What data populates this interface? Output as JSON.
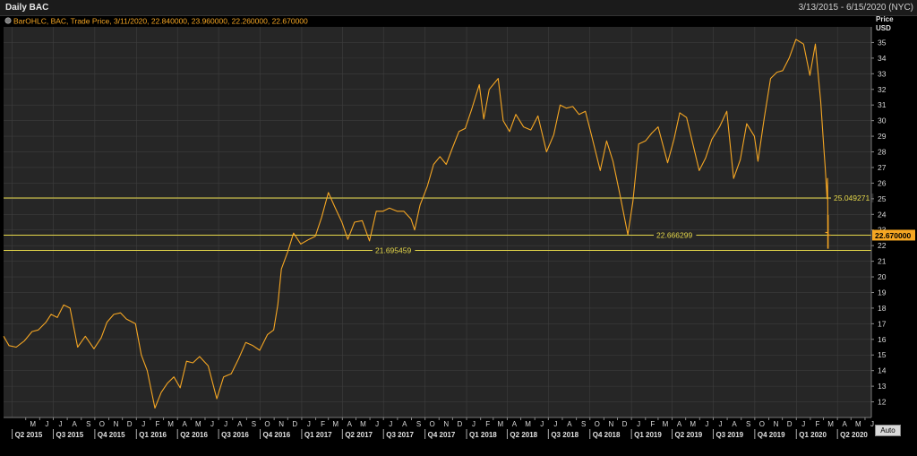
{
  "header": {
    "title": "Daily BAC",
    "date_range": "3/13/2015 - 6/15/2020 (NYC)"
  },
  "legend": {
    "label": "BarOHLC, BAC, Trade Price, 3/11/2020, 22.840000, 23.960000, 22.260000, 22.670000"
  },
  "axis": {
    "title_line1": "Price",
    "title_line2": "USD",
    "auto_label": "Auto"
  },
  "colors": {
    "background": "#000000",
    "plot_background": "#262626",
    "grid": "#3e3e3e",
    "series": "#f5a623",
    "level_line": "#e6d84a",
    "last_price_tag": "#f5a623"
  },
  "chart_data": {
    "type": "line",
    "title": "Daily BAC",
    "ylabel": "Price USD",
    "ylim": [
      11,
      36
    ],
    "y_ticks": [
      12,
      13,
      14,
      15,
      16,
      17,
      18,
      19,
      20,
      21,
      22,
      23,
      24,
      25,
      26,
      27,
      28,
      29,
      30,
      31,
      32,
      33,
      34,
      35
    ],
    "x_range": [
      "2015-03-13",
      "2020-06-15"
    ],
    "month_ticks": [
      {
        "date": "2015-04-01",
        "label": "A"
      },
      {
        "date": "2015-05-01",
        "label": "M"
      },
      {
        "date": "2015-06-01",
        "label": "J"
      },
      {
        "date": "2015-07-01",
        "label": "J"
      },
      {
        "date": "2015-08-01",
        "label": "A"
      },
      {
        "date": "2015-09-01",
        "label": "S"
      },
      {
        "date": "2015-10-01",
        "label": "O"
      },
      {
        "date": "2015-11-01",
        "label": "N"
      },
      {
        "date": "2015-12-01",
        "label": "D"
      },
      {
        "date": "2016-01-01",
        "label": "J"
      },
      {
        "date": "2016-02-01",
        "label": "F"
      },
      {
        "date": "2016-03-01",
        "label": "M"
      },
      {
        "date": "2016-04-01",
        "label": "A"
      },
      {
        "date": "2016-05-01",
        "label": "M"
      },
      {
        "date": "2016-06-01",
        "label": "J"
      },
      {
        "date": "2016-07-01",
        "label": "J"
      },
      {
        "date": "2016-08-01",
        "label": "A"
      },
      {
        "date": "2016-09-01",
        "label": "S"
      },
      {
        "date": "2016-10-01",
        "label": "O"
      },
      {
        "date": "2016-11-01",
        "label": "N"
      },
      {
        "date": "2016-12-01",
        "label": "D"
      },
      {
        "date": "2017-01-01",
        "label": "J"
      },
      {
        "date": "2017-02-01",
        "label": "F"
      },
      {
        "date": "2017-03-01",
        "label": "M"
      },
      {
        "date": "2017-04-01",
        "label": "A"
      },
      {
        "date": "2017-05-01",
        "label": "M"
      },
      {
        "date": "2017-06-01",
        "label": "J"
      },
      {
        "date": "2017-07-01",
        "label": "J"
      },
      {
        "date": "2017-08-01",
        "label": "A"
      },
      {
        "date": "2017-09-01",
        "label": "S"
      },
      {
        "date": "2017-10-01",
        "label": "O"
      },
      {
        "date": "2017-11-01",
        "label": "N"
      },
      {
        "date": "2017-12-01",
        "label": "D"
      },
      {
        "date": "2018-01-01",
        "label": "J"
      },
      {
        "date": "2018-02-01",
        "label": "F"
      },
      {
        "date": "2018-03-01",
        "label": "M"
      },
      {
        "date": "2018-04-01",
        "label": "A"
      },
      {
        "date": "2018-05-01",
        "label": "M"
      },
      {
        "date": "2018-06-01",
        "label": "J"
      },
      {
        "date": "2018-07-01",
        "label": "J"
      },
      {
        "date": "2018-08-01",
        "label": "A"
      },
      {
        "date": "2018-09-01",
        "label": "S"
      },
      {
        "date": "2018-10-01",
        "label": "O"
      },
      {
        "date": "2018-11-01",
        "label": "N"
      },
      {
        "date": "2018-12-01",
        "label": "D"
      },
      {
        "date": "2019-01-01",
        "label": "J"
      },
      {
        "date": "2019-02-01",
        "label": "F"
      },
      {
        "date": "2019-03-01",
        "label": "M"
      },
      {
        "date": "2019-04-01",
        "label": "A"
      },
      {
        "date": "2019-05-01",
        "label": "M"
      },
      {
        "date": "2019-06-01",
        "label": "J"
      },
      {
        "date": "2019-07-01",
        "label": "J"
      },
      {
        "date": "2019-08-01",
        "label": "A"
      },
      {
        "date": "2019-09-01",
        "label": "S"
      },
      {
        "date": "2019-10-01",
        "label": "O"
      },
      {
        "date": "2019-11-01",
        "label": "N"
      },
      {
        "date": "2019-12-01",
        "label": "D"
      },
      {
        "date": "2020-01-01",
        "label": "J"
      },
      {
        "date": "2020-02-01",
        "label": "F"
      },
      {
        "date": "2020-03-01",
        "label": "M"
      },
      {
        "date": "2020-04-01",
        "label": "A"
      },
      {
        "date": "2020-05-01",
        "label": "M"
      },
      {
        "date": "2020-06-01",
        "label": "J"
      }
    ],
    "quarter_ticks": [
      {
        "date": "2015-04-01",
        "label": "Q2 2015"
      },
      {
        "date": "2015-07-01",
        "label": "Q3 2015"
      },
      {
        "date": "2015-10-01",
        "label": "Q4 2015"
      },
      {
        "date": "2016-01-01",
        "label": "Q1 2016"
      },
      {
        "date": "2016-04-01",
        "label": "Q2 2016"
      },
      {
        "date": "2016-07-01",
        "label": "Q3 2016"
      },
      {
        "date": "2016-10-01",
        "label": "Q4 2016"
      },
      {
        "date": "2017-01-01",
        "label": "Q1 2017"
      },
      {
        "date": "2017-04-01",
        "label": "Q2 2017"
      },
      {
        "date": "2017-07-01",
        "label": "Q3 2017"
      },
      {
        "date": "2017-10-01",
        "label": "Q4 2017"
      },
      {
        "date": "2018-01-01",
        "label": "Q1 2018"
      },
      {
        "date": "2018-04-01",
        "label": "Q2 2018"
      },
      {
        "date": "2018-07-01",
        "label": "Q3 2018"
      },
      {
        "date": "2018-10-01",
        "label": "Q4 2018"
      },
      {
        "date": "2019-01-01",
        "label": "Q1 2019"
      },
      {
        "date": "2019-04-01",
        "label": "Q2 2019"
      },
      {
        "date": "2019-07-01",
        "label": "Q3 2019"
      },
      {
        "date": "2019-10-01",
        "label": "Q4 2019"
      },
      {
        "date": "2020-01-01",
        "label": "Q1 2020"
      },
      {
        "date": "2020-04-01",
        "label": "Q2 2020"
      }
    ],
    "series": [
      {
        "values": [
          [
            "2015-03-13",
            16.2
          ],
          [
            "2015-03-25",
            15.6
          ],
          [
            "2015-04-10",
            15.5
          ],
          [
            "2015-04-28",
            15.9
          ],
          [
            "2015-05-15",
            16.5
          ],
          [
            "2015-05-29",
            16.6
          ],
          [
            "2015-06-15",
            17.1
          ],
          [
            "2015-06-26",
            17.6
          ],
          [
            "2015-07-10",
            17.4
          ],
          [
            "2015-07-24",
            18.2
          ],
          [
            "2015-08-07",
            18.0
          ],
          [
            "2015-08-24",
            15.5
          ],
          [
            "2015-09-10",
            16.2
          ],
          [
            "2015-09-29",
            15.4
          ],
          [
            "2015-10-15",
            16.1
          ],
          [
            "2015-10-28",
            17.1
          ],
          [
            "2015-11-12",
            17.6
          ],
          [
            "2015-11-27",
            17.7
          ],
          [
            "2015-12-10",
            17.3
          ],
          [
            "2015-12-30",
            17.0
          ],
          [
            "2016-01-12",
            15.0
          ],
          [
            "2016-01-25",
            14.0
          ],
          [
            "2016-02-11",
            11.6
          ],
          [
            "2016-02-25",
            12.6
          ],
          [
            "2016-03-10",
            13.2
          ],
          [
            "2016-03-24",
            13.6
          ],
          [
            "2016-04-07",
            12.9
          ],
          [
            "2016-04-21",
            14.6
          ],
          [
            "2016-05-05",
            14.5
          ],
          [
            "2016-05-20",
            14.9
          ],
          [
            "2016-06-08",
            14.3
          ],
          [
            "2016-06-27",
            12.2
          ],
          [
            "2016-07-12",
            13.6
          ],
          [
            "2016-07-29",
            13.8
          ],
          [
            "2016-08-15",
            14.8
          ],
          [
            "2016-08-30",
            15.8
          ],
          [
            "2016-09-15",
            15.6
          ],
          [
            "2016-09-30",
            15.3
          ],
          [
            "2016-10-17",
            16.3
          ],
          [
            "2016-10-31",
            16.6
          ],
          [
            "2016-11-09",
            18.2
          ],
          [
            "2016-11-17",
            20.5
          ],
          [
            "2016-12-01",
            21.6
          ],
          [
            "2016-12-14",
            22.8
          ],
          [
            "2016-12-30",
            22.1
          ],
          [
            "2017-01-17",
            22.4
          ],
          [
            "2017-01-31",
            22.6
          ],
          [
            "2017-02-14",
            23.8
          ],
          [
            "2017-03-01",
            25.4
          ],
          [
            "2017-03-15",
            24.5
          ],
          [
            "2017-03-31",
            23.5
          ],
          [
            "2017-04-13",
            22.4
          ],
          [
            "2017-04-28",
            23.5
          ],
          [
            "2017-05-15",
            23.6
          ],
          [
            "2017-05-31",
            22.3
          ],
          [
            "2017-06-15",
            24.2
          ],
          [
            "2017-06-30",
            24.2
          ],
          [
            "2017-07-14",
            24.4
          ],
          [
            "2017-07-31",
            24.2
          ],
          [
            "2017-08-15",
            24.2
          ],
          [
            "2017-08-31",
            23.7
          ],
          [
            "2017-09-08",
            23.0
          ],
          [
            "2017-09-20",
            24.6
          ],
          [
            "2017-10-06",
            25.8
          ],
          [
            "2017-10-20",
            27.2
          ],
          [
            "2017-11-03",
            27.7
          ],
          [
            "2017-11-17",
            27.2
          ],
          [
            "2017-11-30",
            28.2
          ],
          [
            "2017-12-15",
            29.3
          ],
          [
            "2017-12-29",
            29.5
          ],
          [
            "2018-01-12",
            30.7
          ],
          [
            "2018-01-29",
            32.3
          ],
          [
            "2018-02-08",
            30.1
          ],
          [
            "2018-02-20",
            32.0
          ],
          [
            "2018-03-12",
            32.7
          ],
          [
            "2018-03-23",
            30.0
          ],
          [
            "2018-04-06",
            29.3
          ],
          [
            "2018-04-20",
            30.4
          ],
          [
            "2018-05-07",
            29.6
          ],
          [
            "2018-05-23",
            29.4
          ],
          [
            "2018-06-08",
            30.3
          ],
          [
            "2018-06-27",
            28.0
          ],
          [
            "2018-07-13",
            29.1
          ],
          [
            "2018-07-27",
            31.0
          ],
          [
            "2018-08-10",
            30.8
          ],
          [
            "2018-08-24",
            30.9
          ],
          [
            "2018-09-07",
            30.4
          ],
          [
            "2018-09-21",
            30.6
          ],
          [
            "2018-10-05",
            29.0
          ],
          [
            "2018-10-24",
            26.8
          ],
          [
            "2018-11-07",
            28.7
          ],
          [
            "2018-11-21",
            27.4
          ],
          [
            "2018-12-07",
            25.2
          ],
          [
            "2018-12-24",
            22.7
          ],
          [
            "2019-01-04",
            24.8
          ],
          [
            "2019-01-17",
            28.5
          ],
          [
            "2019-02-01",
            28.7
          ],
          [
            "2019-02-15",
            29.2
          ],
          [
            "2019-03-01",
            29.6
          ],
          [
            "2019-03-22",
            27.3
          ],
          [
            "2019-04-05",
            28.8
          ],
          [
            "2019-04-18",
            30.5
          ],
          [
            "2019-05-03",
            30.2
          ],
          [
            "2019-05-31",
            26.8
          ],
          [
            "2019-06-14",
            27.6
          ],
          [
            "2019-06-28",
            28.8
          ],
          [
            "2019-07-15",
            29.6
          ],
          [
            "2019-07-31",
            30.6
          ],
          [
            "2019-08-15",
            26.3
          ],
          [
            "2019-08-30",
            27.5
          ],
          [
            "2019-09-13",
            29.8
          ],
          [
            "2019-09-30",
            29.0
          ],
          [
            "2019-10-08",
            27.4
          ],
          [
            "2019-10-22",
            30.2
          ],
          [
            "2019-11-05",
            32.7
          ],
          [
            "2019-11-19",
            33.1
          ],
          [
            "2019-12-02",
            33.2
          ],
          [
            "2019-12-16",
            34.0
          ],
          [
            "2019-12-31",
            35.2
          ],
          [
            "2020-01-17",
            34.9
          ],
          [
            "2020-01-31",
            32.9
          ],
          [
            "2020-02-12",
            34.9
          ],
          [
            "2020-02-24",
            31.2
          ],
          [
            "2020-03-02",
            28.2
          ],
          [
            "2020-03-05",
            27.0
          ],
          [
            "2020-03-09",
            25.0
          ],
          [
            "2020-03-10",
            26.3
          ],
          [
            "2020-03-11",
            22.67
          ]
        ]
      }
    ],
    "last_bar": {
      "date": "2020-03-11",
      "open": 22.84,
      "high": 23.96,
      "low": 22.26,
      "close": 22.67
    },
    "horizontal_lines": [
      {
        "value": 25.049271,
        "label": "25.049271"
      },
      {
        "value": 22.666299,
        "label": "22.666299"
      },
      {
        "value": 21.695459,
        "label": "21.695459"
      }
    ],
    "last_price": {
      "value": 22.67,
      "label": "22.670000"
    }
  }
}
